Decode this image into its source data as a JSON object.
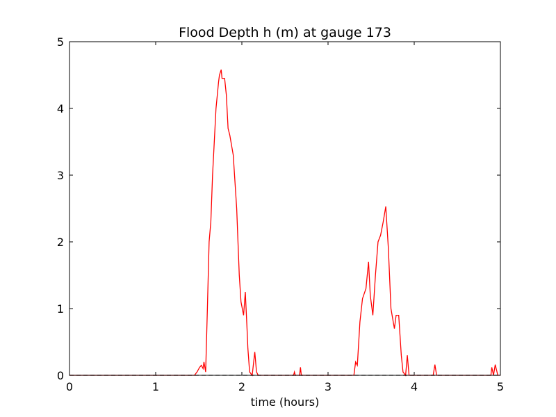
{
  "chart_data": {
    "type": "line",
    "title": "Flood Depth h (m) at gauge 173",
    "xlabel": "time (hours)",
    "xlim": [
      0,
      5
    ],
    "ylim": [
      0,
      5
    ],
    "xticks": [
      0,
      1,
      2,
      3,
      4,
      5
    ],
    "yticks": [
      0,
      1,
      2,
      3,
      4,
      5
    ],
    "grid": false,
    "series": [
      {
        "color": "#ff0000",
        "linestyle": "solid",
        "x": [
          0,
          1.45,
          1.48,
          1.51,
          1.53,
          1.55,
          1.56,
          1.58,
          1.6,
          1.62,
          1.64,
          1.66,
          1.68,
          1.7,
          1.73,
          1.74,
          1.76,
          1.77,
          1.8,
          1.82,
          1.84,
          1.86,
          1.9,
          1.94,
          1.97,
          1.99,
          2.02,
          2.04,
          2.06,
          2.07,
          2.09,
          2.12,
          2.15,
          2.17,
          2.19,
          2.6,
          2.61,
          2.62,
          2.67,
          2.68,
          2.69,
          3.3,
          3.32,
          3.34,
          3.37,
          3.4,
          3.44,
          3.47,
          3.49,
          3.52,
          3.55,
          3.58,
          3.61,
          3.64,
          3.67,
          3.7,
          3.73,
          3.77,
          3.79,
          3.82,
          3.85,
          3.87,
          3.9,
          3.92,
          3.94,
          4.22,
          4.24,
          4.26,
          4.89,
          4.9,
          4.92,
          4.94,
          4.97,
          5
        ],
        "values": [
          0,
          0,
          0.05,
          0.12,
          0.15,
          0.1,
          0.2,
          0.05,
          1.0,
          2.0,
          2.3,
          3.0,
          3.5,
          4.0,
          4.4,
          4.5,
          4.58,
          4.45,
          4.45,
          4.2,
          3.7,
          3.6,
          3.3,
          2.5,
          1.5,
          1.1,
          0.9,
          1.25,
          0.7,
          0.4,
          0.05,
          0,
          0.35,
          0.05,
          0,
          0,
          0.05,
          0,
          0,
          0.12,
          0,
          0,
          0.2,
          0.15,
          0.8,
          1.15,
          1.3,
          1.7,
          1.2,
          0.9,
          1.5,
          2.0,
          2.1,
          2.3,
          2.53,
          1.9,
          1.0,
          0.7,
          0.9,
          0.9,
          0.3,
          0.05,
          0,
          0.3,
          0,
          0,
          0.16,
          0,
          0,
          0.12,
          0,
          0.16,
          0,
          0
        ]
      },
      {
        "color": "#000000",
        "linestyle": "dashed",
        "x": [
          0,
          5
        ],
        "values": [
          0,
          0
        ]
      }
    ]
  }
}
